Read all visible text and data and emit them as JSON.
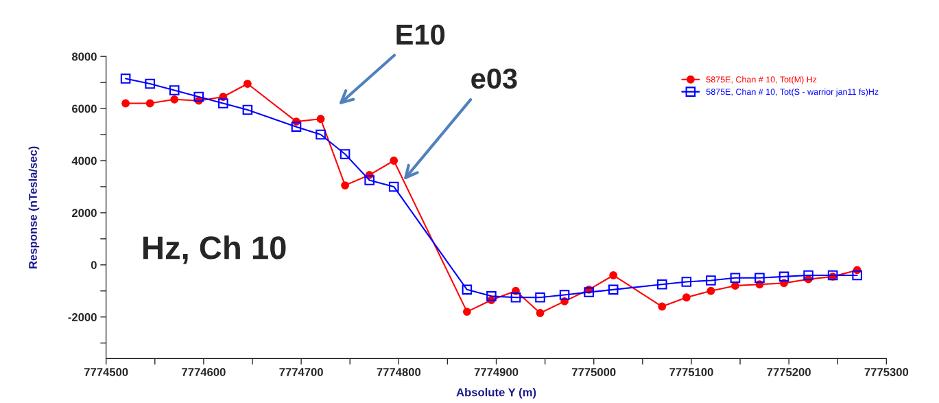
{
  "chart_data": {
    "type": "line",
    "xlabel": "Absolute Y (m)",
    "ylabel": "Response (nTesla/sec)",
    "annotations": [
      "E10",
      {
        "text": "e03",
        "x": 7774805,
        "y": 3250
      },
      "Hz, Ch 10"
    ],
    "xlim": [
      7774500,
      7775300
    ],
    "xticks": [
      7774500,
      7774600,
      7774700,
      7774800,
      7774900,
      7775000,
      7775100,
      7775200,
      7775300
    ],
    "ylim": [
      -3600,
      8000
    ],
    "yticks": [
      -2000,
      0,
      2000,
      4000,
      6000,
      8000
    ],
    "grid": false,
    "legend": "top right",
    "series": [
      {
        "name": "5875E, Chan # 10, Tot(M) Hz",
        "color": "#ff0000",
        "marker": "circle",
        "x": [
          7774520,
          7774545,
          7774570,
          7774595,
          7774620,
          7774645,
          7774695,
          7774720,
          7774745,
          7774770,
          7774795,
          7774870,
          7774895,
          7774920,
          7774945,
          7774970,
          7774995,
          7775020,
          7775070,
          7775095,
          7775120,
          7775145,
          7775170,
          7775195,
          7775220,
          7775245,
          7775270
        ],
        "values": [
          6200,
          6200,
          6350,
          6300,
          6450,
          6950,
          5500,
          5600,
          3050,
          3450,
          4000,
          -1800,
          -1350,
          -1000,
          -1850,
          -1400,
          -950,
          -400,
          -1600,
          -1250,
          -1000,
          -800,
          -750,
          -700,
          -550,
          -450,
          -200
        ]
      },
      {
        "name": "5875E, Chan # 10, Tot(S - warrior jan11 fs)Hz",
        "color": "#0000ff",
        "marker": "square",
        "x": [
          7774520,
          7774545,
          7774570,
          7774595,
          7774620,
          7774645,
          7774695,
          7774720,
          7774745,
          7774770,
          7774795,
          7774870,
          7774895,
          7774920,
          7774945,
          7774970,
          7774995,
          7775020,
          7775070,
          7775095,
          7775120,
          7775145,
          7775170,
          7775195,
          7775220,
          7775245,
          7775270
        ],
        "values": [
          7150,
          6950,
          6700,
          6450,
          6200,
          5950,
          5300,
          5000,
          4250,
          3250,
          3000,
          -950,
          -1200,
          -1250,
          -1250,
          -1150,
          -1050,
          -950,
          -750,
          -650,
          -600,
          -500,
          -500,
          -450,
          -400,
          -400,
          -400
        ]
      }
    ]
  }
}
